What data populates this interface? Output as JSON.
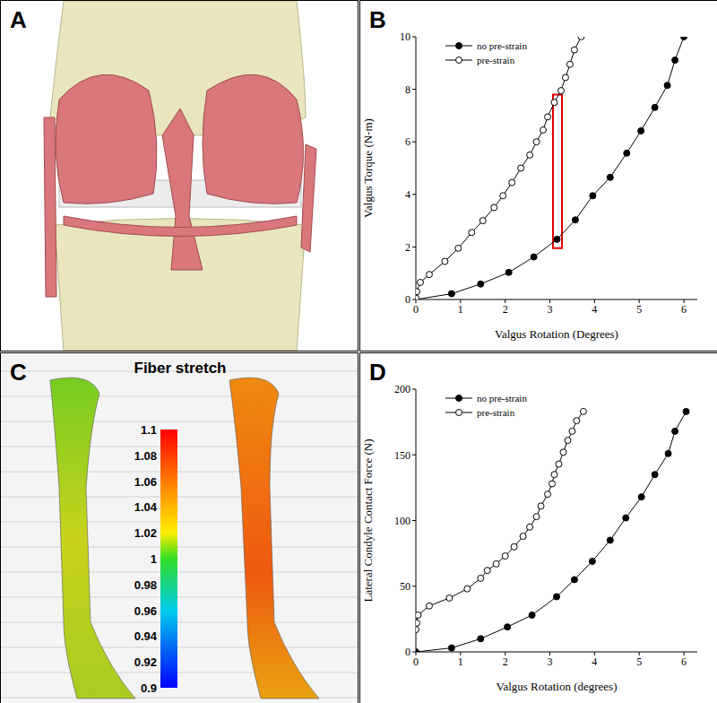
{
  "chart_data": [
    {
      "type": "image",
      "panel_label": "A"
    },
    {
      "type": "line",
      "panel_label": "B",
      "x_label": "Valgus Rotation (Degrees)",
      "y_label": "Valgus Torque (N-m)",
      "xlim": [
        0,
        6.3
      ],
      "xticks": [
        0,
        1,
        2,
        3,
        4,
        5,
        6
      ],
      "ylim": [
        0,
        10
      ],
      "yticks": [
        0,
        2,
        4,
        6,
        8,
        10
      ],
      "legend": "upper left",
      "series": [
        {
          "name": "no pre-strain",
          "color": "#000000",
          "marker": "filled_circle",
          "line_style": "solid",
          "x": [
            0,
            0.8,
            1.45,
            2.08,
            2.64,
            3.16,
            3.57,
            3.96,
            4.35,
            4.72,
            5.04,
            5.35,
            5.63,
            5.8,
            6.0
          ],
          "values": [
            0,
            0.22,
            0.59,
            1.03,
            1.62,
            2.29,
            3.03,
            3.95,
            4.65,
            5.57,
            6.42,
            7.31,
            8.15,
            9.11,
            10
          ]
        },
        {
          "name": "pre-strain",
          "color": "#000000",
          "marker": "open_circle",
          "line_style": "solid",
          "x": [
            0,
            0.02,
            0.1,
            0.3,
            0.65,
            0.95,
            1.25,
            1.5,
            1.75,
            1.95,
            2.15,
            2.35,
            2.55,
            2.7,
            2.85,
            2.95,
            3.1,
            3.25,
            3.35,
            3.45,
            3.55,
            3.7
          ],
          "values": [
            0.05,
            0.3,
            0.65,
            0.95,
            1.45,
            1.95,
            2.55,
            3.0,
            3.5,
            3.95,
            4.45,
            5.0,
            5.5,
            6.0,
            6.45,
            6.95,
            7.5,
            7.95,
            8.45,
            8.95,
            9.5,
            10
          ]
        }
      ],
      "highlight_box": {
        "x": [
          3.07,
          3.27
        ],
        "y": [
          1.95,
          7.8
        ],
        "color": "#e00000"
      }
    },
    {
      "type": "colorbar",
      "panel_label": "C",
      "title": "Fiber stretch",
      "zlim": [
        0.9,
        1.1
      ],
      "zticks": [
        0.9,
        0.92,
        0.94,
        0.96,
        0.98,
        1,
        1.02,
        1.04,
        1.06,
        1.08,
        1.1
      ]
    },
    {
      "type": "line",
      "panel_label": "D",
      "x_label": "Valgus Rotation (degrees)",
      "y_label": "Lateral Condyle Contact Force (N)",
      "xlim": [
        0,
        6.3
      ],
      "xticks": [
        0,
        1,
        2,
        3,
        4,
        5,
        6
      ],
      "ylim": [
        0,
        200
      ],
      "yticks": [
        0,
        50,
        100,
        150,
        200
      ],
      "legend": "upper left",
      "series": [
        {
          "name": "no pre-strain",
          "color": "#000000",
          "marker": "filled_circle",
          "line_style": "solid",
          "x": [
            0,
            0.8,
            1.45,
            2.05,
            2.6,
            3.15,
            3.55,
            3.95,
            4.35,
            4.7,
            5.05,
            5.35,
            5.65,
            5.8,
            6.05
          ],
          "values": [
            0,
            3,
            10,
            19,
            28,
            42,
            55,
            69,
            85,
            102,
            118,
            135,
            151,
            168,
            183
          ]
        },
        {
          "name": "pre-strain",
          "color": "#000000",
          "marker": "open_circle",
          "line_style": "solid",
          "x": [
            0,
            0.02,
            0.05,
            0.3,
            0.75,
            1.15,
            1.45,
            1.6,
            1.8,
            2.0,
            2.2,
            2.4,
            2.55,
            2.7,
            2.8,
            2.95,
            3.05,
            3.1,
            3.2,
            3.3,
            3.4,
            3.5,
            3.6,
            3.75
          ],
          "values": [
            17,
            22,
            28,
            35,
            41,
            48,
            56,
            62,
            67,
            73,
            80,
            88,
            95,
            103,
            111,
            120,
            128,
            135,
            143,
            152,
            161,
            168,
            176,
            183
          ]
        }
      ]
    }
  ]
}
